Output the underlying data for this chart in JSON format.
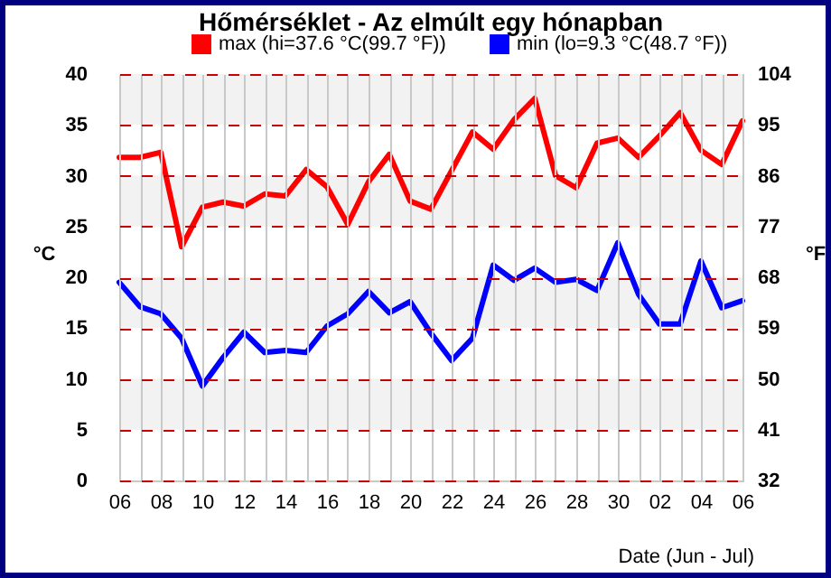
{
  "chart_data": {
    "type": "line",
    "title": "Hőmérséklet - Az elmúlt egy hónapban",
    "xlabel": "Date (Jun - Jul)",
    "ylabel": "°C",
    "y2label": "°F",
    "x": [
      "--06-06",
      "--06-07",
      "--06-08",
      "--06-09",
      "--06-10",
      "--06-11",
      "--06-12",
      "--06-13",
      "--06-14",
      "--06-15",
      "--06-16",
      "--06-17",
      "--06-18",
      "--06-19",
      "--06-20",
      "--06-21",
      "--06-22",
      "--06-23",
      "--06-24",
      "--06-25",
      "--06-26",
      "--06-27",
      "--06-28",
      "--06-29",
      "--06-30",
      "--07-01",
      "--07-02",
      "--07-03",
      "--07-04",
      "--07-05",
      "--07-06"
    ],
    "series": [
      {
        "name": "max (hi=37.6 °C(99.7 °F))",
        "color": "#ff0000",
        "values": [
          31.8,
          31.8,
          32.3,
          23.0,
          26.9,
          27.4,
          27.0,
          28.2,
          28.0,
          30.6,
          28.9,
          25.2,
          29.4,
          32.1,
          27.5,
          26.7,
          30.5,
          34.3,
          32.6,
          35.5,
          37.6,
          30.0,
          28.8,
          33.2,
          33.7,
          31.8,
          33.9,
          36.2,
          32.5,
          31.1,
          35.4
        ]
      },
      {
        "name": "min (lo=9.3 °C(48.7 °F))",
        "color": "#0000ff",
        "values": [
          19.5,
          17.1,
          16.4,
          14.0,
          9.3,
          12.1,
          14.6,
          12.6,
          12.8,
          12.6,
          15.2,
          16.4,
          18.6,
          16.5,
          17.6,
          14.5,
          11.8,
          14.0,
          21.2,
          19.7,
          20.9,
          19.5,
          19.8,
          18.7,
          23.4,
          18.3,
          15.4,
          15.4,
          21.6,
          17.0,
          17.7
        ]
      }
    ],
    "xlim": [
      "--06-06",
      "--07-06"
    ],
    "xticks": [
      {
        "value": "--06-06",
        "label": "06"
      },
      {
        "value": "--06-07",
        "label": null
      },
      {
        "value": "--06-08",
        "label": "08"
      },
      {
        "value": "--06-09",
        "label": null
      },
      {
        "value": "--06-10",
        "label": "10"
      },
      {
        "value": "--06-11",
        "label": null
      },
      {
        "value": "--06-12",
        "label": "12"
      },
      {
        "value": "--06-13",
        "label": null
      },
      {
        "value": "--06-14",
        "label": "14"
      },
      {
        "value": "--06-15",
        "label": null
      },
      {
        "value": "--06-16",
        "label": "16"
      },
      {
        "value": "--06-17",
        "label": null
      },
      {
        "value": "--06-18",
        "label": "18"
      },
      {
        "value": "--06-19",
        "label": null
      },
      {
        "value": "--06-20",
        "label": "20"
      },
      {
        "value": "--06-21",
        "label": null
      },
      {
        "value": "--06-22",
        "label": "22"
      },
      {
        "value": "--06-23",
        "label": null
      },
      {
        "value": "--06-24",
        "label": "24"
      },
      {
        "value": "--06-25",
        "label": null
      },
      {
        "value": "--06-26",
        "label": "26"
      },
      {
        "value": "--06-27",
        "label": null
      },
      {
        "value": "--06-28",
        "label": "28"
      },
      {
        "value": "--06-29",
        "label": null
      },
      {
        "value": "--06-30",
        "label": "30"
      },
      {
        "value": "--07-01",
        "label": null
      },
      {
        "value": "--07-02",
        "label": "02"
      },
      {
        "value": "--07-03",
        "label": null
      },
      {
        "value": "--07-04",
        "label": "04"
      },
      {
        "value": "--07-05",
        "label": null
      },
      {
        "value": "--07-06",
        "label": "06"
      }
    ],
    "ylim": [
      0,
      40
    ],
    "yticks": [
      0,
      5,
      10,
      15,
      20,
      25,
      30,
      35,
      40
    ],
    "y2lim": [
      32,
      104
    ],
    "y2ticks": [
      32,
      41,
      50,
      59,
      68,
      77,
      86,
      95,
      104
    ],
    "bands": [
      {
        "axis": "y",
        "from": 35,
        "to": 40,
        "color": "#f2f2f2"
      },
      {
        "axis": "y",
        "from": 25,
        "to": 30,
        "color": "#f2f2f2"
      },
      {
        "axis": "y",
        "from": 15,
        "to": 20,
        "color": "#f2f2f2"
      },
      {
        "axis": "y",
        "from": 5,
        "to": 10,
        "color": "#f2f2f2"
      }
    ],
    "grid": true,
    "legend": "top",
    "line_style": "solid"
  }
}
